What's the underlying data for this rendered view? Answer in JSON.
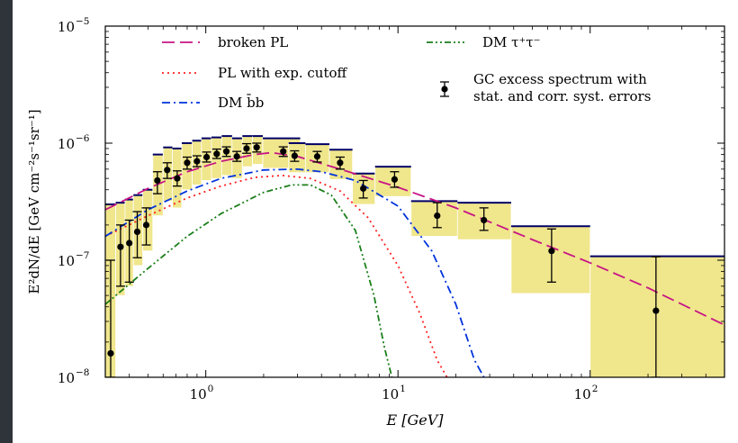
{
  "chart_data": {
    "type": "scatter",
    "title": "",
    "xlabel": "E [GeV]",
    "ylabel": "E²dN/dE [GeV cm⁻²s⁻¹sr⁻¹]",
    "xscale": "log",
    "yscale": "log",
    "xlim": [
      0.3,
      500
    ],
    "ylim": [
      1e-08,
      1e-05
    ],
    "x_ticks": [
      {
        "value": 1,
        "base": "10",
        "exp": "0"
      },
      {
        "value": 10,
        "base": "10",
        "exp": "1"
      },
      {
        "value": 100,
        "base": "10",
        "exp": "2"
      }
    ],
    "y_ticks": [
      {
        "value": 1e-08,
        "base": "10",
        "exp": "−8"
      },
      {
        "value": 1e-07,
        "base": "10",
        "exp": "−7"
      },
      {
        "value": 1e-06,
        "base": "10",
        "exp": "−6"
      },
      {
        "value": 1e-05,
        "base": "10",
        "exp": "−5"
      }
    ],
    "grid": false,
    "legend_position": "top",
    "legend": [
      {
        "label": "broken PL",
        "series": "broken_pl"
      },
      {
        "label": "PL with exp. cutoff",
        "series": "pl_cutoff"
      },
      {
        "label": "DM b̄b",
        "series": "dm_bb"
      },
      {
        "label": "DM τ⁺τ⁻",
        "series": "dm_tautau"
      },
      {
        "label_line1": "GC excess spectrum with",
        "label_line2": "stat. and corr. syst. errors",
        "series": "gc_excess"
      }
    ],
    "colors": {
      "broken_pl": "#c71585",
      "pl_cutoff": "#ff2020",
      "dm_bb": "#0033dd",
      "dm_tautau": "#1b7f1b",
      "box_fill": "#f0e68c",
      "box_edge": "#000066",
      "points": "#000000"
    },
    "series": [
      {
        "name": "GC excess spectrum with stat. and corr. syst. errors",
        "key": "gc_excess",
        "style": "points_with_errorbars_and_boxes",
        "points": [
          {
            "x": 0.32,
            "y": 1.6e-08,
            "ylo": 1e-08,
            "yhi": 1e-07,
            "xlo": 0.3,
            "xhi": 0.34,
            "boxlo": 1e-08,
            "boxhi": 3e-07
          },
          {
            "x": 0.36,
            "y": 1.3e-07,
            "ylo": 6e-08,
            "yhi": 2e-07,
            "xlo": 0.34,
            "xhi": 0.38,
            "boxlo": 5e-08,
            "boxhi": 3.1e-07
          },
          {
            "x": 0.4,
            "y": 1.4e-07,
            "ylo": 6.5e-08,
            "yhi": 2.2e-07,
            "xlo": 0.38,
            "xhi": 0.42,
            "boxlo": 6e-08,
            "boxhi": 3.3e-07
          },
          {
            "x": 0.44,
            "y": 1.75e-07,
            "ylo": 1.05e-07,
            "yhi": 2.6e-07,
            "xlo": 0.42,
            "xhi": 0.47,
            "boxlo": 9e-08,
            "boxhi": 3.6e-07
          },
          {
            "x": 0.49,
            "y": 2e-07,
            "ylo": 1.35e-07,
            "yhi": 2.8e-07,
            "xlo": 0.47,
            "xhi": 0.53,
            "boxlo": 1.2e-07,
            "boxhi": 4e-07
          },
          {
            "x": 0.56,
            "y": 4.8e-07,
            "ylo": 3.7e-07,
            "yhi": 5.7e-07,
            "xlo": 0.53,
            "xhi": 0.6,
            "boxlo": 2.4e-07,
            "boxhi": 8e-07
          },
          {
            "x": 0.63,
            "y": 5.9e-07,
            "ylo": 5e-07,
            "yhi": 6.8e-07,
            "xlo": 0.6,
            "xhi": 0.67,
            "boxlo": 3.2e-07,
            "boxhi": 9.2e-07
          },
          {
            "x": 0.71,
            "y": 5e-07,
            "ylo": 4.3e-07,
            "yhi": 5.8e-07,
            "xlo": 0.67,
            "xhi": 0.75,
            "boxlo": 2.8e-07,
            "boxhi": 9e-07
          },
          {
            "x": 0.8,
            "y": 6.8e-07,
            "ylo": 6e-07,
            "yhi": 7.6e-07,
            "xlo": 0.75,
            "xhi": 0.85,
            "boxlo": 4e-07,
            "boxhi": 1e-06
          },
          {
            "x": 0.9,
            "y": 7e-07,
            "ylo": 6.3e-07,
            "yhi": 7.8e-07,
            "xlo": 0.85,
            "xhi": 0.95,
            "boxlo": 4.4e-07,
            "boxhi": 1.05e-06
          },
          {
            "x": 1.01,
            "y": 7.6e-07,
            "ylo": 6.9e-07,
            "yhi": 8.4e-07,
            "xlo": 0.95,
            "xhi": 1.07,
            "boxlo": 4.8e-07,
            "boxhi": 1.1e-06
          },
          {
            "x": 1.14,
            "y": 8.1e-07,
            "ylo": 7.4e-07,
            "yhi": 8.9e-07,
            "xlo": 1.07,
            "xhi": 1.21,
            "boxlo": 5e-07,
            "boxhi": 1.12e-06
          },
          {
            "x": 1.28,
            "y": 8.5e-07,
            "ylo": 7.7e-07,
            "yhi": 9.3e-07,
            "xlo": 1.21,
            "xhi": 1.37,
            "boxlo": 5.3e-07,
            "boxhi": 1.15e-06
          },
          {
            "x": 1.45,
            "y": 7.7e-07,
            "ylo": 7e-07,
            "yhi": 8.5e-07,
            "xlo": 1.37,
            "xhi": 1.55,
            "boxlo": 5e-07,
            "boxhi": 1.1e-06
          },
          {
            "x": 1.63,
            "y": 9e-07,
            "ylo": 8.2e-07,
            "yhi": 9.9e-07,
            "xlo": 1.55,
            "xhi": 1.75,
            "boxlo": 6.3e-07,
            "boxhi": 1.15e-06
          },
          {
            "x": 1.84,
            "y": 9.2e-07,
            "ylo": 8.4e-07,
            "yhi": 1e-06,
            "xlo": 1.75,
            "xhi": 1.98,
            "boxlo": 6.6e-07,
            "boxhi": 1.15e-06
          },
          {
            "x": 2.53,
            "y": 8.5e-07,
            "ylo": 7.7e-07,
            "yhi": 9.3e-07,
            "xlo": 1.98,
            "xhi": 3.1,
            "boxlo": 6.1e-07,
            "boxhi": 1.1e-06
          },
          {
            "x": 2.9,
            "y": 7.8e-07,
            "ylo": 7e-07,
            "yhi": 8.6e-07,
            "xlo": 2.7,
            "xhi": 3.3,
            "boxlo": 5.6e-07,
            "boxhi": 1e-06
          },
          {
            "x": 3.8,
            "y": 7.7e-07,
            "ylo": 6.9e-07,
            "yhi": 8.5e-07,
            "xlo": 3.3,
            "xhi": 4.4,
            "boxlo": 5.6e-07,
            "boxhi": 9.8e-07
          },
          {
            "x": 5.0,
            "y": 6.8e-07,
            "ylo": 6e-07,
            "yhi": 7.6e-07,
            "xlo": 4.4,
            "xhi": 5.8,
            "boxlo": 4.9e-07,
            "boxhi": 8.8e-07
          },
          {
            "x": 6.6,
            "y": 4.1e-07,
            "ylo": 3.4e-07,
            "yhi": 4.8e-07,
            "xlo": 5.8,
            "xhi": 7.6,
            "boxlo": 3e-07,
            "boxhi": 5.5e-07
          },
          {
            "x": 9.6,
            "y": 4.9e-07,
            "ylo": 4.2e-07,
            "yhi": 5.7e-07,
            "xlo": 7.6,
            "xhi": 11.7,
            "boxlo": 3.5e-07,
            "boxhi": 6.3e-07
          },
          {
            "x": 16.0,
            "y": 2.4e-07,
            "ylo": 1.9e-07,
            "yhi": 3.1e-07,
            "xlo": 11.7,
            "xhi": 20.4,
            "boxlo": 1.6e-07,
            "boxhi": 3.2e-07
          },
          {
            "x": 28.0,
            "y": 2.2e-07,
            "ylo": 1.8e-07,
            "yhi": 2.8e-07,
            "xlo": 20.4,
            "xhi": 38.8,
            "boxlo": 1.5e-07,
            "boxhi": 3.1e-07
          },
          {
            "x": 63.0,
            "y": 1.2e-07,
            "ylo": 6.5e-08,
            "yhi": 1.85e-07,
            "xlo": 38.8,
            "xhi": 100,
            "boxlo": 5.2e-08,
            "boxhi": 1.95e-07
          },
          {
            "x": 220.0,
            "y": 3.7e-08,
            "ylo": 1e-08,
            "yhi": 1.07e-07,
            "xlo": 100,
            "xhi": 500,
            "boxlo": 1e-08,
            "boxhi": 1.08e-07
          }
        ]
      },
      {
        "name": "broken PL",
        "key": "broken_pl",
        "style": "dashed",
        "x": [
          0.3,
          0.5,
          0.8,
          1.2,
          1.8,
          2.2,
          3.0,
          5.0,
          10,
          20,
          50,
          100,
          200,
          500
        ],
        "y": [
          2.7e-07,
          4.1e-07,
          5.7e-07,
          7e-07,
          8e-07,
          8.3e-07,
          7.7e-07,
          6e-07,
          4.2e-07,
          2.8e-07,
          1.5e-07,
          9.5e-08,
          5.8e-08,
          2.8e-08
        ]
      },
      {
        "name": "PL with exp. cutoff",
        "key": "pl_cutoff",
        "style": "dotted",
        "x": [
          0.3,
          0.5,
          0.8,
          1.2,
          1.8,
          2.5,
          3.5,
          5.0,
          7.0,
          10,
          13,
          16,
          18
        ],
        "y": [
          1.6e-07,
          2.4e-07,
          3.4e-07,
          4.3e-07,
          5.1e-07,
          5.3e-07,
          5e-07,
          3.9e-07,
          2.3e-07,
          9e-08,
          3.5e-08,
          1.4e-08,
          1e-08
        ]
      },
      {
        "name": "DM b̄b",
        "key": "dm_bb",
        "style": "dashdot",
        "x": [
          0.3,
          0.5,
          0.8,
          1.2,
          2.0,
          3.0,
          4.0,
          6.0,
          10,
          15,
          20,
          25,
          28
        ],
        "y": [
          1.6e-07,
          2.7e-07,
          3.9e-07,
          5e-07,
          5.9e-07,
          6e-07,
          5.7e-07,
          4.8e-07,
          2.9e-07,
          1.2e-07,
          4.2e-08,
          1.4e-08,
          1e-08
        ]
      },
      {
        "name": "DM τ⁺τ⁻",
        "key": "dm_tautau",
        "style": "dashdotdot",
        "x": [
          0.3,
          0.5,
          0.8,
          1.2,
          2.0,
          2.8,
          3.5,
          4.5,
          6.0,
          7.5,
          8.5,
          9.3
        ],
        "y": [
          4.2e-08,
          8.5e-08,
          1.6e-07,
          2.5e-07,
          3.8e-07,
          4.4e-07,
          4.4e-07,
          3.6e-07,
          1.8e-07,
          5e-08,
          1.8e-08,
          1e-08
        ]
      }
    ]
  }
}
